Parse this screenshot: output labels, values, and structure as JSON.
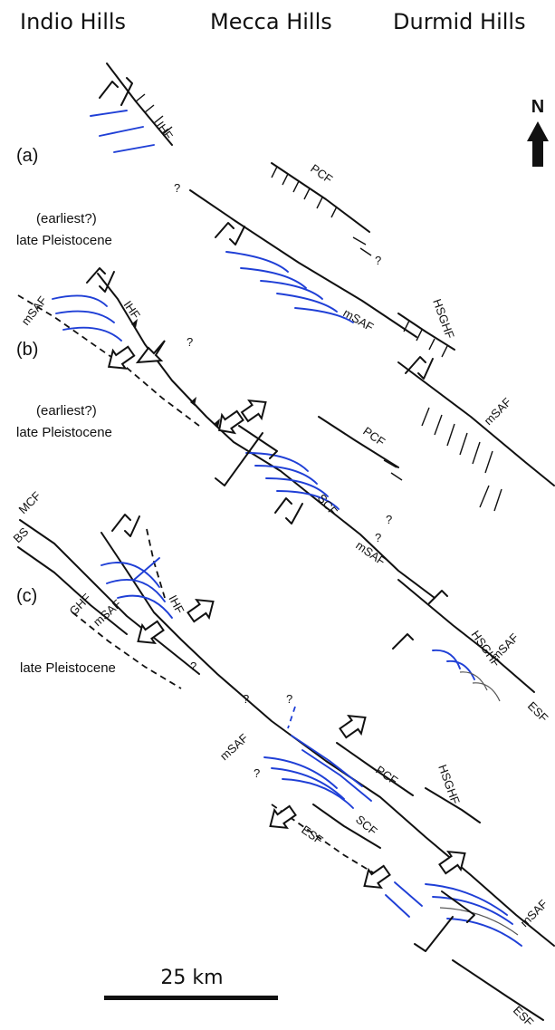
{
  "headers": [
    "Indio Hills",
    "Mecca Hills",
    "Durmid Hills"
  ],
  "north_label": "N",
  "panels": [
    {
      "letter": "(a)",
      "age_line1": "(earliest?)",
      "age_line2": "late Pleistocene"
    },
    {
      "letter": "(b)",
      "age_line1": "(earliest?)",
      "age_line2": "late Pleistocene"
    },
    {
      "letter": "(c)",
      "age_line1": "late Pleistocene",
      "age_line2": ""
    }
  ],
  "fault_labels": {
    "ihf": "IHF",
    "pcf": "PCF",
    "msaf": "mSAF",
    "hsghf": "HSGHF",
    "scf": "SCF",
    "esf": "ESF",
    "mcf": "MCF",
    "bs": "BS",
    "ghf": "GHF",
    "query": "?"
  },
  "scale_label": "25 km",
  "colors": {
    "fold": "#1f3fd6",
    "fault": "#111111"
  }
}
